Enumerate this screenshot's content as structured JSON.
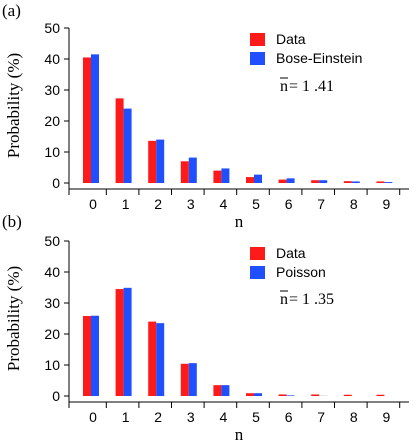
{
  "colors": {
    "data": "#ff1a1a",
    "model": "#1f4fff",
    "axis": "#000000"
  },
  "chart_data": [
    {
      "type": "bar",
      "panel_label": "(a)",
      "categories": [
        "0",
        "1",
        "2",
        "3",
        "4",
        "5",
        "6",
        "7",
        "8",
        "9"
      ],
      "series": [
        {
          "name": "Data",
          "values": [
            40.5,
            27.3,
            13.6,
            7.0,
            4.0,
            1.9,
            1.1,
            0.9,
            0.6,
            0.5
          ]
        },
        {
          "name": "Bose-Einstein",
          "values": [
            41.5,
            24.0,
            14.0,
            8.2,
            4.7,
            2.7,
            1.5,
            0.9,
            0.5,
            0.3
          ]
        }
      ],
      "xlabel": "n",
      "ylabel": "Probability (%)",
      "ylim": [
        0,
        50
      ],
      "yticks": [
        0,
        10,
        20,
        30,
        40,
        50
      ],
      "annotation": {
        "symbol": "n",
        "text": " = 1 .41"
      },
      "legend": "top-right",
      "grid": false
    },
    {
      "type": "bar",
      "panel_label": "(b)",
      "categories": [
        "0",
        "1",
        "2",
        "3",
        "4",
        "5",
        "6",
        "7",
        "8",
        "9"
      ],
      "series": [
        {
          "name": "Data",
          "values": [
            25.8,
            34.5,
            24.0,
            10.4,
            3.5,
            0.9,
            0.5,
            0.5,
            0.4,
            0.4
          ]
        },
        {
          "name": "Poisson",
          "values": [
            25.9,
            34.9,
            23.5,
            10.6,
            3.5,
            0.9,
            0.2,
            0.05,
            0.0,
            0.0
          ]
        }
      ],
      "xlabel": "n",
      "ylabel": "Probability (%)",
      "ylim": [
        0,
        50
      ],
      "yticks": [
        0,
        10,
        20,
        30,
        40,
        50
      ],
      "annotation": {
        "symbol": "n",
        "text": " = 1 .35"
      },
      "legend": "top-right",
      "grid": false
    }
  ]
}
